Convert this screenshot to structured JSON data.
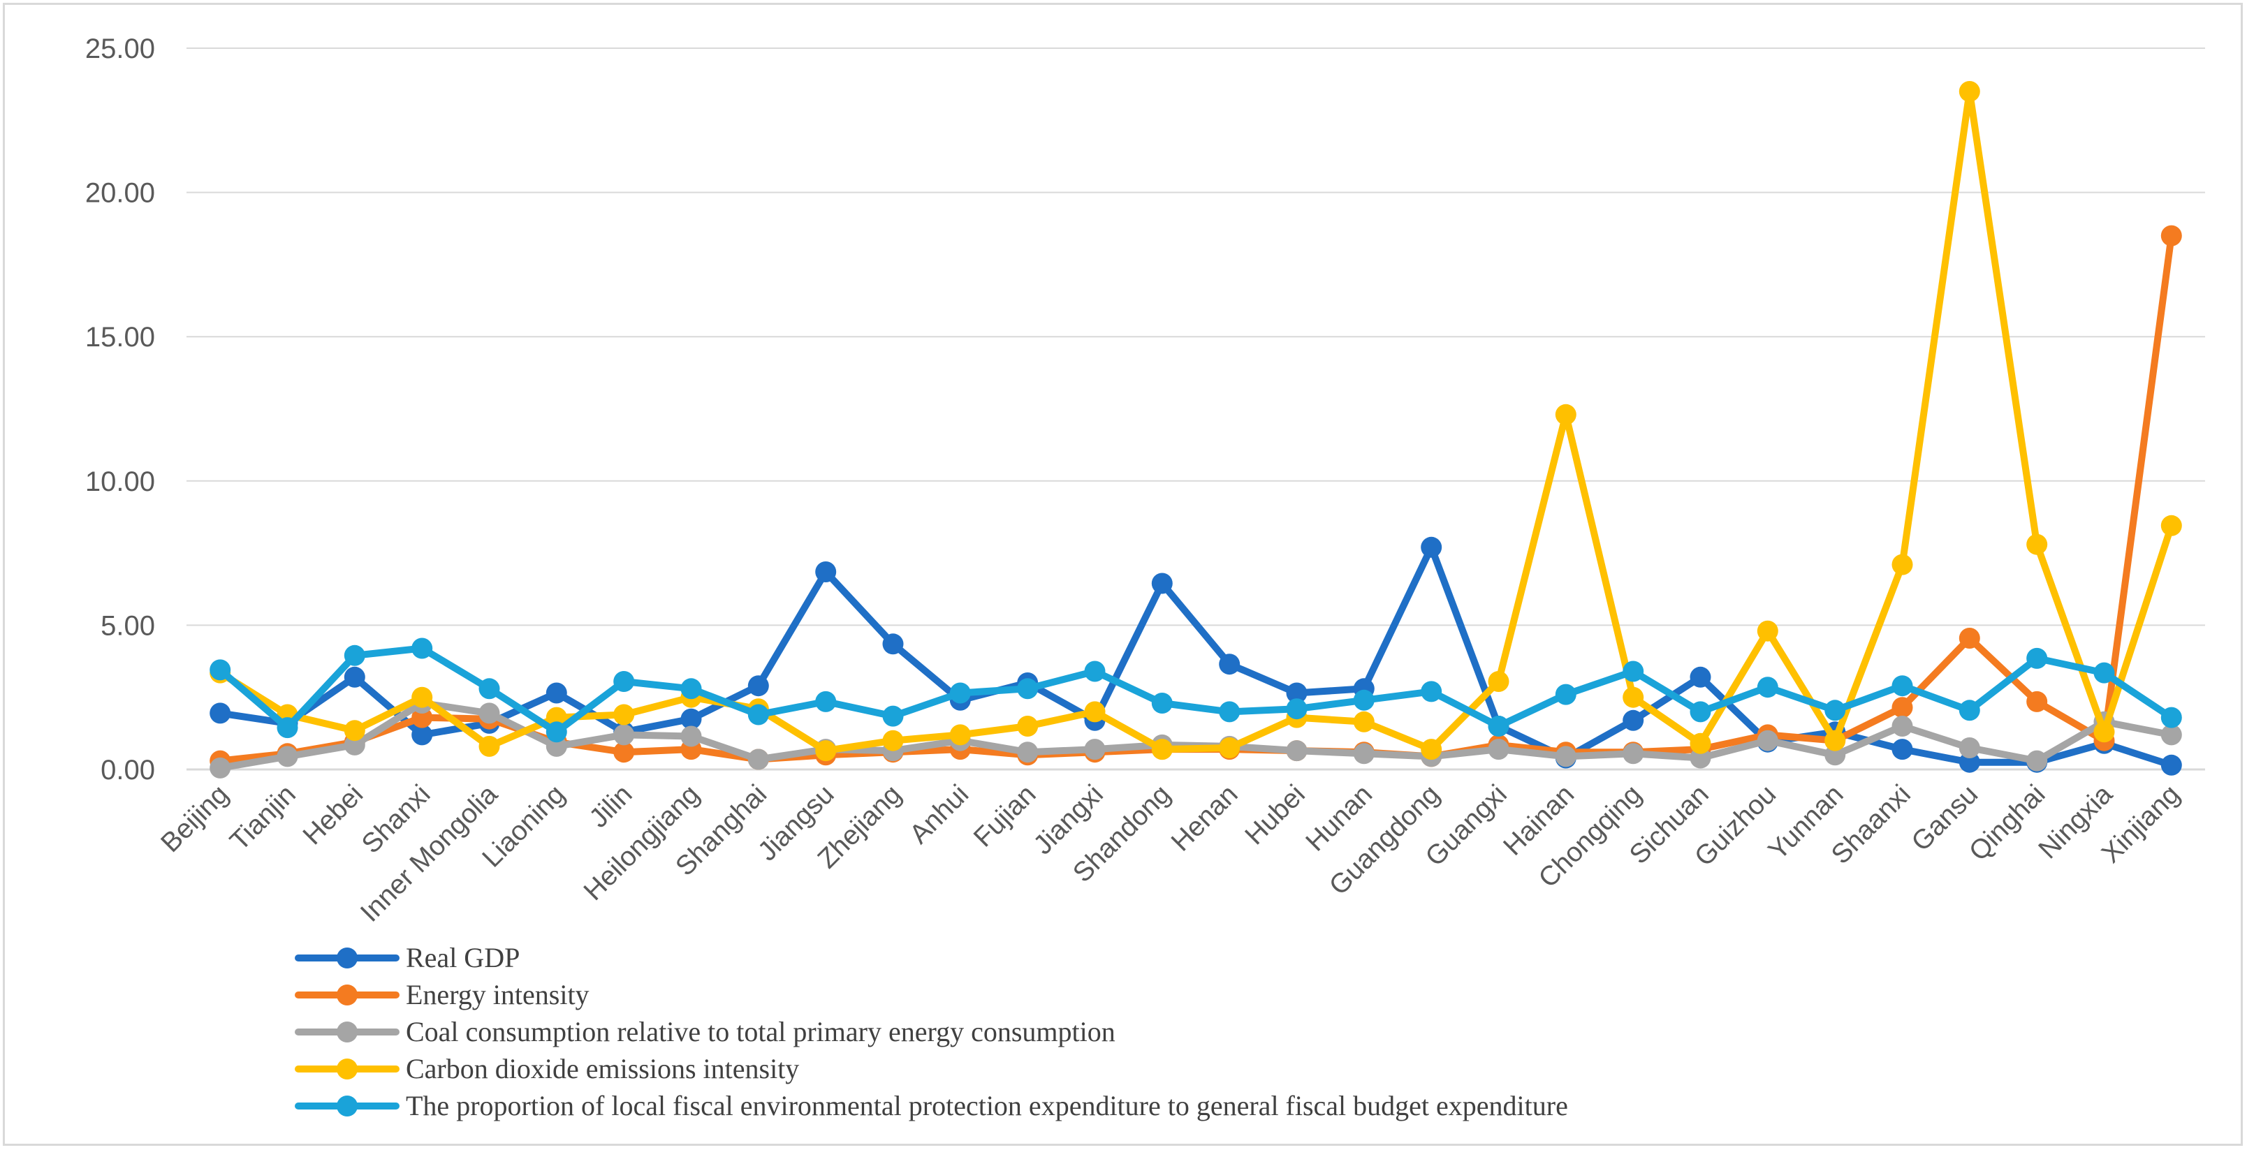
{
  "chart_data": {
    "type": "line",
    "title": "",
    "xlabel": "",
    "ylabel": "",
    "ylim": [
      0,
      25
    ],
    "yticks": [
      0,
      5,
      10,
      15,
      20,
      25
    ],
    "ytick_labels": [
      "0.00",
      "5.00",
      "10.00",
      "15.00",
      "20.00",
      "25.00"
    ],
    "grid": "horizontal",
    "legend_position": "bottom",
    "categories": [
      "Beijing",
      "Tianjin",
      "Hebei",
      "Shanxi",
      "Inner Mongolia",
      "Liaoning",
      "Jilin",
      "Heilongjiang",
      "Shanghai",
      "Jiangsu",
      "Zhejiang",
      "Anhui",
      "Fujian",
      "Jiangxi",
      "Shandong",
      "Henan",
      "Hubei",
      "Hunan",
      "Guangdong",
      "Guangxi",
      "Hainan",
      "Chongqing",
      "Sichuan",
      "Guizhou",
      "Yunnan",
      "Shaanxi",
      "Gansu",
      "Qinghai",
      "Ningxia",
      "Xinjiang"
    ],
    "series": [
      {
        "name": "Real GDP",
        "color": "#1f6fc6",
        "values": [
          1.95,
          1.6,
          3.2,
          1.2,
          1.6,
          2.65,
          1.3,
          1.75,
          2.9,
          6.85,
          4.35,
          2.4,
          3.0,
          1.7,
          6.45,
          3.65,
          2.65,
          2.8,
          7.7,
          1.5,
          0.4,
          1.7,
          3.2,
          0.95,
          1.3,
          0.7,
          0.25,
          0.25,
          0.9,
          0.15
        ]
      },
      {
        "name": "Energy intensity",
        "color": "#f47b20",
        "values": [
          0.3,
          0.55,
          0.95,
          1.8,
          1.75,
          0.95,
          0.6,
          0.7,
          0.35,
          0.5,
          0.6,
          0.7,
          0.5,
          0.6,
          0.7,
          0.7,
          0.65,
          0.6,
          0.45,
          0.85,
          0.6,
          0.6,
          0.7,
          1.2,
          1.0,
          2.15,
          4.55,
          2.35,
          1.0,
          18.5
        ]
      },
      {
        "name": "Coal consumption relative to total primary energy consumption",
        "color": "#a5a5a5",
        "values": [
          0.05,
          0.45,
          0.85,
          2.3,
          1.95,
          0.8,
          1.2,
          1.15,
          0.35,
          0.7,
          0.65,
          1.0,
          0.6,
          0.7,
          0.85,
          0.8,
          0.65,
          0.55,
          0.45,
          0.7,
          0.45,
          0.55,
          0.4,
          1.0,
          0.5,
          1.5,
          0.75,
          0.3,
          1.65,
          1.2
        ]
      },
      {
        "name": "Carbon dioxide emissions intensity",
        "color": "#ffc000",
        "values": [
          3.35,
          1.9,
          1.35,
          2.5,
          0.8,
          1.8,
          1.9,
          2.5,
          2.1,
          0.65,
          1.0,
          1.2,
          1.5,
          2.0,
          0.7,
          0.75,
          1.8,
          1.65,
          0.7,
          3.05,
          12.3,
          2.5,
          0.9,
          4.8,
          1.0,
          7.1,
          23.5,
          7.8,
          1.3,
          8.45
        ]
      },
      {
        "name": "The proportion of local fiscal environmental protection expenditure to general fiscal budget expenditure",
        "color": "#1aa3d9",
        "values": [
          3.45,
          1.45,
          3.95,
          4.2,
          2.8,
          1.3,
          3.05,
          2.8,
          1.9,
          2.35,
          1.85,
          2.65,
          2.8,
          3.4,
          2.3,
          2.0,
          2.1,
          2.4,
          2.7,
          1.5,
          2.6,
          3.4,
          2.0,
          2.85,
          2.05,
          2.9,
          2.05,
          3.85,
          3.35,
          1.8
        ]
      }
    ]
  }
}
